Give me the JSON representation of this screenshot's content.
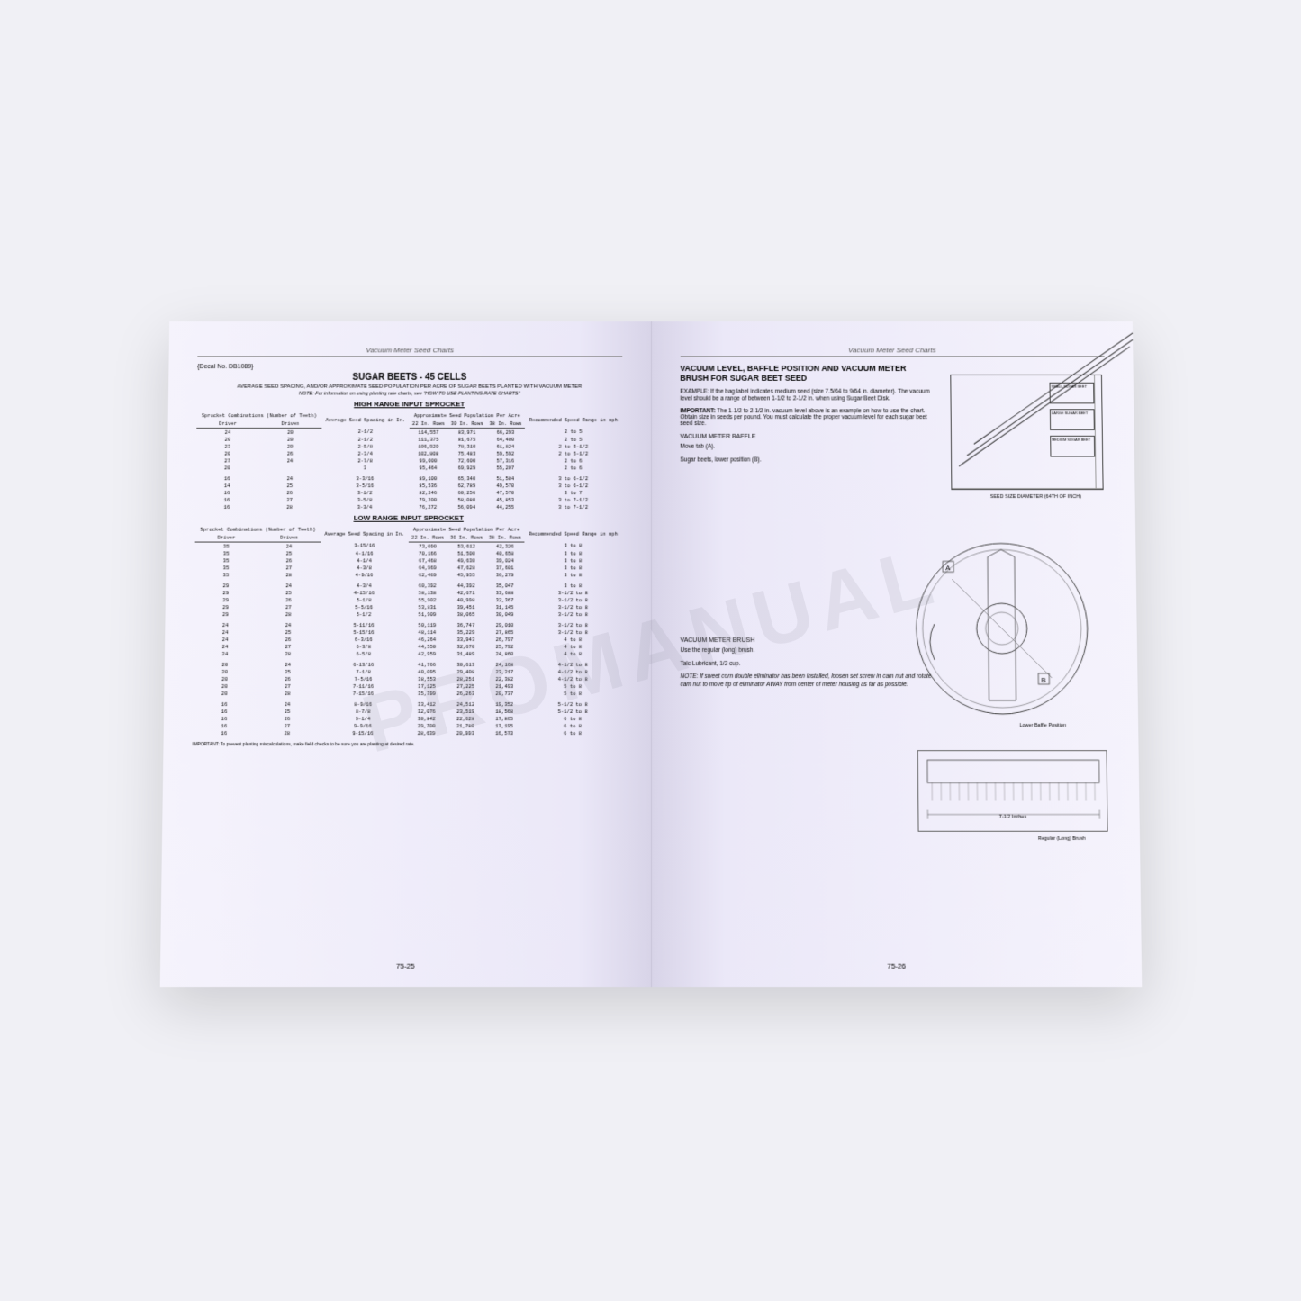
{
  "watermark": "PROMANUAL",
  "left_page": {
    "header": "Vacuum Meter Seed Charts",
    "decal": "{Decal No. DB1089}",
    "title": "SUGAR BEETS - 45 CELLS",
    "subtitle": "AVERAGE SEED SPACING, AND/OR APPROXIMATE SEED POPULATION PER ACRE OF SUGAR BEETS PLANTED WITH VACUUM METER",
    "note": "NOTE: For information on using planting rate charts, see \"HOW TO USE PLANTING RATE CHARTS\"",
    "high_section": "HIGH RANGE INPUT SPROCKET",
    "low_section": "LOW RANGE INPUT SPROCKET",
    "col_headers": {
      "sprocket": "Sprocket Combinations (Number of Teeth)",
      "driver": "Driver",
      "driven": "Driven",
      "spacing": "Average Seed Spacing in In.",
      "pop": "Approximate Seed Population Per Acre",
      "c22": "22 In. Rows",
      "c30": "30 In. Rows",
      "c38": "38 In. Rows",
      "speed": "Recommended Speed Range in mph"
    },
    "high_rows": [
      [
        "24",
        "20",
        "2-1/2",
        "114,557",
        "83,971",
        "66,293",
        "2 to 5"
      ],
      [
        "20",
        "20",
        "2-1/2",
        "111,375",
        "81,675",
        "64,480",
        "2 to 5"
      ],
      [
        "23",
        "20",
        "2-5/8",
        "106,920",
        "78,310",
        "61,824",
        "2 to 5-1/2"
      ],
      [
        "20",
        "26",
        "2-3/4",
        "102,808",
        "75,483",
        "59,592",
        "2 to 5-1/2"
      ],
      [
        "27",
        "24",
        "2-7/8",
        "99,000",
        "72,600",
        "57,316",
        "2 to 6"
      ],
      [
        "20",
        "",
        "3",
        "95,464",
        "69,929",
        "55,207",
        "2 to 6"
      ],
      [
        "16",
        "24",
        "3-3/16",
        "89,100",
        "65,340",
        "51,584",
        "3 to 6-1/2"
      ],
      [
        "14",
        "25",
        "3-5/16",
        "85,536",
        "62,789",
        "49,570",
        "3 to 6-1/2"
      ],
      [
        "16",
        "26",
        "3-1/2",
        "82,246",
        "60,256",
        "47,570",
        "3 to 7"
      ],
      [
        "16",
        "27",
        "3-5/8",
        "79,200",
        "58,080",
        "45,853",
        "3 to 7-1/2"
      ],
      [
        "16",
        "28",
        "3-3/4",
        "76,272",
        "56,094",
        "44,255",
        "3 to 7-1/2"
      ]
    ],
    "low_rows": [
      [
        "35",
        "24",
        "3-15/16",
        "73,090",
        "53,612",
        "42,326",
        "3 to 8"
      ],
      [
        "35",
        "25",
        "4-1/16",
        "70,166",
        "51,500",
        "40,658",
        "3 to 8"
      ],
      [
        "35",
        "26",
        "4-1/4",
        "67,468",
        "49,630",
        "39,024",
        "3 to 8"
      ],
      [
        "35",
        "27",
        "4-3/8",
        "64,969",
        "47,628",
        "37,601",
        "3 to 8"
      ],
      [
        "35",
        "28",
        "4-9/16",
        "62,469",
        "45,955",
        "36,279",
        "3 to 8"
      ],
      [
        "29",
        "24",
        "4-3/4",
        "60,392",
        "44,392",
        "35,047",
        "3 to 8"
      ],
      [
        "29",
        "25",
        "4-15/16",
        "58,138",
        "42,671",
        "33,688",
        "3-1/2 to 8"
      ],
      [
        "29",
        "26",
        "5-1/8",
        "55,902",
        "40,998",
        "32,367",
        "3-1/2 to 8"
      ],
      [
        "29",
        "27",
        "5-5/16",
        "53,831",
        "39,451",
        "31,145",
        "3-1/2 to 8"
      ],
      [
        "29",
        "28",
        "5-1/2",
        "51,909",
        "38,065",
        "30,049",
        "3-1/2 to 8"
      ],
      [
        "24",
        "24",
        "5-11/16",
        "50,119",
        "36,747",
        "29,010",
        "3-1/2 to 8"
      ],
      [
        "24",
        "25",
        "5-15/16",
        "48,114",
        "35,229",
        "27,865",
        "3-1/2 to 8"
      ],
      [
        "24",
        "26",
        "6-3/16",
        "46,264",
        "33,943",
        "26,797",
        "4 to 8"
      ],
      [
        "24",
        "27",
        "6-3/8",
        "44,550",
        "32,670",
        "25,792",
        "4 to 8"
      ],
      [
        "24",
        "28",
        "6-5/8",
        "42,959",
        "31,489",
        "24,860",
        "4 to 8"
      ],
      [
        "20",
        "24",
        "6-13/16",
        "41,766",
        "30,613",
        "24,168",
        "4-1/2 to 8"
      ],
      [
        "20",
        "25",
        "7-1/8",
        "40,095",
        "29,408",
        "23,217",
        "4-1/2 to 8"
      ],
      [
        "20",
        "26",
        "7-5/16",
        "38,553",
        "28,251",
        "22,382",
        "4-1/2 to 8"
      ],
      [
        "20",
        "27",
        "7-11/16",
        "37,125",
        "27,225",
        "21,493",
        "5 to 8"
      ],
      [
        "20",
        "28",
        "7-15/16",
        "35,799",
        "26,263",
        "20,737",
        "5 to 8"
      ],
      [
        "16",
        "24",
        "8-9/16",
        "33,412",
        "24,512",
        "19,352",
        "5-1/2 to 8"
      ],
      [
        "16",
        "25",
        "8-7/8",
        "32,076",
        "23,519",
        "18,568",
        "5-1/2 to 8"
      ],
      [
        "16",
        "26",
        "9-1/4",
        "30,842",
        "22,628",
        "17,865",
        "6 to 8"
      ],
      [
        "16",
        "27",
        "9-9/16",
        "29,700",
        "21,780",
        "17,195",
        "6 to 8"
      ],
      [
        "16",
        "28",
        "9-15/16",
        "28,639",
        "20,993",
        "16,573",
        "6 to 8"
      ]
    ],
    "important": "IMPORTANT: To prevent planting miscalculations, make field checks to be sure you are planting at desired rate.",
    "page_num": "75-25"
  },
  "right_page": {
    "header": "Vacuum Meter Seed Charts",
    "title": "VACUUM LEVEL, BAFFLE POSITION AND VACUUM METER BRUSH FOR SUGAR BEET SEED",
    "example": "EXAMPLE: If the bag label indicates medium seed (size 7.5/64 to 9/64 in. diameter). The vacuum level should be a range of between 1-1/2 to 2-1/2 in. when using Sugar Beet Disk.",
    "important_label": "IMPORTANT:",
    "important": "The 1-1/2 to 2-1/2 in. vacuum level above is an example on how to use the chart. Obtain size in seeds per pound. You must calculate the proper vacuum level for each sugar beet seed size.",
    "baffle_head": "VACUUM METER BAFFLE",
    "baffle_1": "Move tab (A).",
    "baffle_2": "Sugar beets, lower position (B).",
    "brush_head": "VACUUM METER BRUSH",
    "brush_1": "Use the regular (long) brush.",
    "brush_2": "Talc Lubricant, 1/2 cup.",
    "brush_note": "NOTE: If sweet corn double eliminator has been installed, loosen set screw in cam nut and rotate cam nut to move tip of eliminator AWAY from center of meter housing as far as possible.",
    "chart_label_x": "SEED SIZE DIAMETER (64TH OF INCH)",
    "baffle_label": "Lower Baffle Position",
    "brush_label": "Regular (Long) Brush",
    "brush_dim": "7-1/2 Inches",
    "page_num": "75-26"
  },
  "colors": {
    "text": "#222222",
    "line": "#444444",
    "bg": "#f0f0f5"
  }
}
